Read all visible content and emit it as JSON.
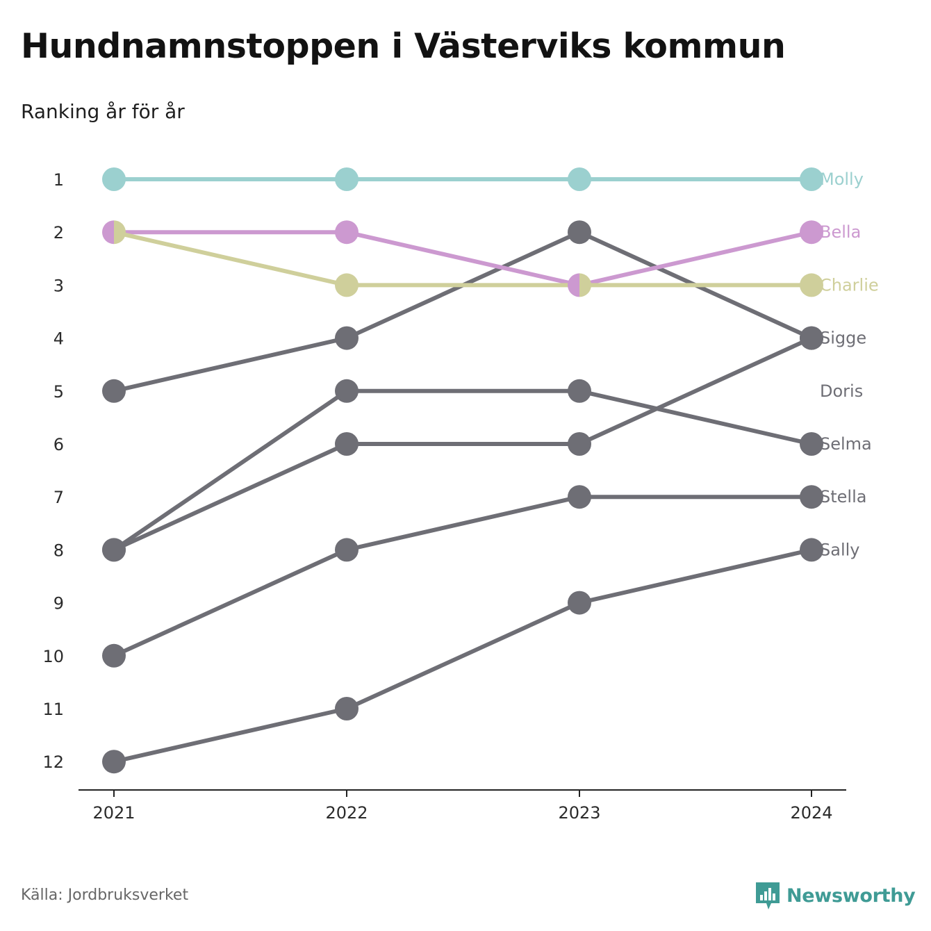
{
  "header": {
    "title": "Hundnamnstoppen i Västerviks kommun",
    "subtitle": "Ranking år för år"
  },
  "footer": {
    "source": "Källa: Jordbruksverket",
    "brand": "Newsworthy",
    "brand_icon": "newsworthy-logo-icon"
  },
  "colors": {
    "highlight_1": "#9bd0cf",
    "highlight_2": "#cc99d0",
    "highlight_3": "#cfcf9b",
    "default": "#6e6e75",
    "brand": "#3f9b95"
  },
  "chart_data": {
    "type": "line",
    "subtype": "bump",
    "x": [
      "2021",
      "2022",
      "2023",
      "2024"
    ],
    "y_ticks": [
      1,
      2,
      3,
      4,
      5,
      6,
      7,
      8,
      9,
      10,
      11,
      12
    ],
    "y_reversed": true,
    "ylim": [
      1,
      12
    ],
    "grid": false,
    "series": [
      {
        "name": "Molly",
        "values": [
          1,
          1,
          1,
          1
        ],
        "color": "#9bd0cf"
      },
      {
        "name": "Bella",
        "values": [
          2,
          2,
          3,
          2
        ],
        "color": "#cc99d0"
      },
      {
        "name": "Charlie",
        "values": [
          2,
          3,
          3,
          3
        ],
        "color": "#cfcf9b"
      },
      {
        "name": "Sigge",
        "values": [
          5,
          4,
          2,
          4
        ],
        "color": "#6e6e75"
      },
      {
        "name": "Doris",
        "values": [
          8,
          6,
          6,
          4
        ],
        "color": "#6e6e75"
      },
      {
        "name": "Selma",
        "values": [
          8,
          5,
          5,
          6
        ],
        "color": "#6e6e75"
      },
      {
        "name": "Stella",
        "values": [
          10,
          8,
          7,
          7
        ],
        "color": "#6e6e75"
      },
      {
        "name": "Sally",
        "values": [
          12,
          11,
          9,
          8
        ],
        "color": "#6e6e75"
      }
    ],
    "end_labels": [
      {
        "name": "Molly",
        "rank": 1
      },
      {
        "name": "Bella",
        "rank": 2
      },
      {
        "name": "Charlie",
        "rank": 3
      },
      {
        "name": "Sigge",
        "rank": 4
      },
      {
        "name": "Doris",
        "rank": 5
      },
      {
        "name": "Selma",
        "rank": 6
      },
      {
        "name": "Stella",
        "rank": 7
      },
      {
        "name": "Sally",
        "rank": 8
      }
    ]
  }
}
